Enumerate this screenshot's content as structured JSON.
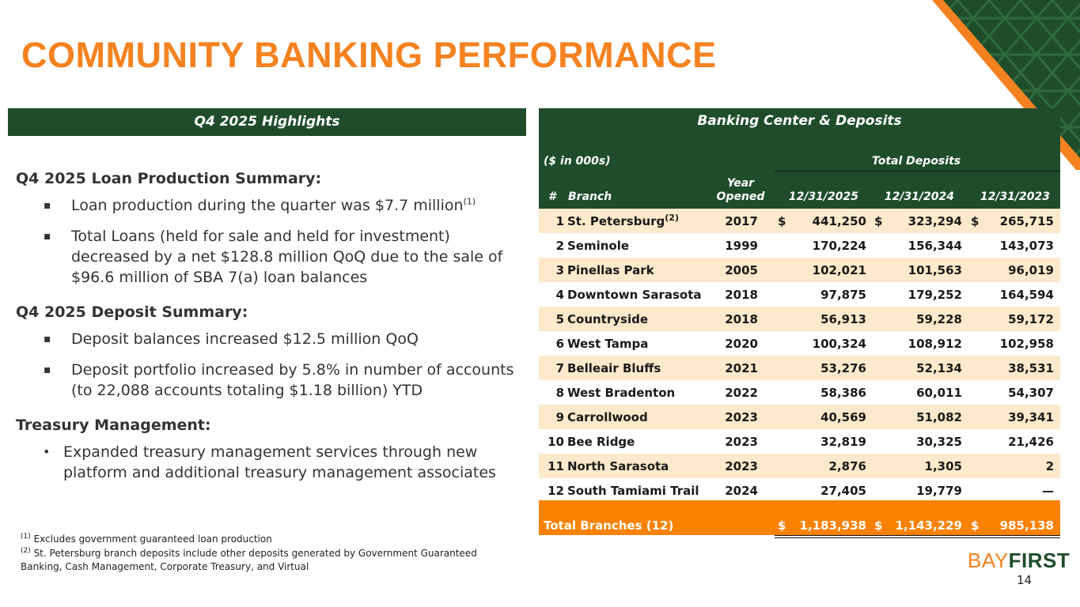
{
  "title": "COMMUNITY BANKING PERFORMANCE",
  "highlights": {
    "header": "Q4 2025 Highlights",
    "sections": [
      {
        "title": "Q4 2025 Loan Production Summary:",
        "bullet_style": "square",
        "bullets": [
          {
            "text": "Loan production during the quarter was $7.7 million",
            "sup": "(1)"
          },
          {
            "text": "Total Loans (held for sale and held for investment) decreased by a net $128.8 million QoQ due to the sale of $96.6 million of SBA 7(a) loan balances",
            "sup": ""
          }
        ]
      },
      {
        "title": "Q4 2025 Deposit Summary:",
        "bullet_style": "square",
        "bullets": [
          {
            "text": "Deposit balances increased $12.5 million QoQ",
            "sup": ""
          },
          {
            "text": "Deposit portfolio increased by 5.8% in number of accounts (to 22,088 accounts totaling $1.18 billion) YTD",
            "sup": ""
          }
        ]
      },
      {
        "title": "Treasury Management:",
        "bullet_style": "round",
        "bullets": [
          {
            "text": "Expanded treasury management services through new platform and additional treasury management associates",
            "sup": ""
          }
        ]
      }
    ]
  },
  "footnotes": [
    {
      "mark": "(1)",
      "text": " Excludes government guaranteed loan production"
    },
    {
      "mark": "(2)",
      "text": " St. Petersburg branch deposits include other deposits generated by Government Guaranteed Banking, Cash Management, Corporate Treasury, and Virtual"
    }
  ],
  "banking": {
    "header": "Banking Center & Deposits",
    "units": "($ in 000s)",
    "group_label": "Total Deposits",
    "col_num": "#",
    "col_branch": "Branch",
    "col_year_line1": "Year",
    "col_year_line2": "Opened",
    "dates": [
      "12/31/2025",
      "12/31/2024",
      "12/31/2023"
    ],
    "rows": [
      {
        "num": "1",
        "branch": "St. Petersburg",
        "sup": "(2)",
        "year": "2017",
        "dollar": true,
        "v": [
          "441,250",
          "323,294",
          "265,715"
        ]
      },
      {
        "num": "2",
        "branch": "Seminole",
        "sup": "",
        "year": "1999",
        "dollar": false,
        "v": [
          "170,224",
          "156,344",
          "143,073"
        ]
      },
      {
        "num": "3",
        "branch": "Pinellas Park",
        "sup": "",
        "year": "2005",
        "dollar": false,
        "v": [
          "102,021",
          "101,563",
          "96,019"
        ]
      },
      {
        "num": "4",
        "branch": "Downtown Sarasota",
        "sup": "",
        "year": "2018",
        "dollar": false,
        "v": [
          "97,875",
          "179,252",
          "164,594"
        ]
      },
      {
        "num": "5",
        "branch": "Countryside",
        "sup": "",
        "year": "2018",
        "dollar": false,
        "v": [
          "56,913",
          "59,228",
          "59,172"
        ]
      },
      {
        "num": "6",
        "branch": "West Tampa",
        "sup": "",
        "year": "2020",
        "dollar": false,
        "v": [
          "100,324",
          "108,912",
          "102,958"
        ]
      },
      {
        "num": "7",
        "branch": "Belleair Bluffs",
        "sup": "",
        "year": "2021",
        "dollar": false,
        "v": [
          "53,276",
          "52,134",
          "38,531"
        ]
      },
      {
        "num": "8",
        "branch": "West Bradenton",
        "sup": "",
        "year": "2022",
        "dollar": false,
        "v": [
          "58,386",
          "60,011",
          "54,307"
        ]
      },
      {
        "num": "9",
        "branch": "Carrollwood",
        "sup": "",
        "year": "2023",
        "dollar": false,
        "v": [
          "40,569",
          "51,082",
          "39,341"
        ]
      },
      {
        "num": "10",
        "branch": "Bee Ridge",
        "sup": "",
        "year": "2023",
        "dollar": false,
        "v": [
          "32,819",
          "30,325",
          "21,426"
        ]
      },
      {
        "num": "11",
        "branch": "North Sarasota",
        "sup": "",
        "year": "2023",
        "dollar": false,
        "v": [
          "2,876",
          "1,305",
          "2"
        ]
      },
      {
        "num": "12",
        "branch": "South Tamiami Trail",
        "sup": "",
        "year": "2024",
        "dollar": false,
        "v": [
          "27,405",
          "19,779",
          "—"
        ]
      }
    ],
    "total": {
      "label": "Total Branches (12)",
      "dollar": "$",
      "v": [
        "1,183,938",
        "1,143,229",
        "985,138"
      ]
    }
  },
  "logo": {
    "part1": "BAY",
    "part2": "FIRST"
  },
  "page_number": "14",
  "colors": {
    "brand_orange": "#f58220",
    "brand_green": "#1f4d2b",
    "row_alt": "#fde9cb",
    "total_bar": "#fb8101"
  }
}
